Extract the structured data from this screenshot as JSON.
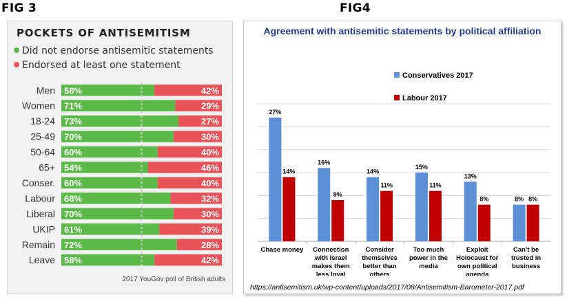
{
  "labels": {
    "fig3": "FIG 3",
    "fig4": "FIG4"
  },
  "chart_data": [
    {
      "type": "bar",
      "stacked": true,
      "orientation": "horizontal",
      "title": "POCKETS OF ANTISEMITISM",
      "categories": [
        "Men",
        "Women",
        "18-24",
        "25-49",
        "50-64",
        "65+",
        "Conser.",
        "Labour",
        "Liberal",
        "UKIP",
        "Remain",
        "Leave"
      ],
      "series": [
        {
          "name": "Did not endorse antisemitic statements",
          "color": "#5bba47",
          "values": [
            58,
            71,
            73,
            70,
            60,
            54,
            60,
            68,
            70,
            61,
            72,
            58
          ]
        },
        {
          "name": "Endorsed at least one statement",
          "color": "#e8535a",
          "values": [
            42,
            29,
            27,
            30,
            40,
            46,
            40,
            32,
            30,
            39,
            28,
            42
          ]
        }
      ],
      "value_suffix": "%",
      "xlim": [
        0,
        100
      ],
      "reference_line": 50,
      "source": "2017 YouGov poll of British adults"
    },
    {
      "type": "bar",
      "title": "Agreement with antisemitic statements by political affiliation",
      "categories": [
        [
          "Chase money"
        ],
        [
          "Connection",
          "with Israel",
          "makes them",
          "less loyal"
        ],
        [
          "Consider",
          "themselves",
          "better than",
          "others"
        ],
        [
          "Too much",
          "power in the",
          "media"
        ],
        [
          "Exploit",
          "Holocaust for",
          "own political",
          "agenda"
        ],
        [
          "Can't be",
          "trusted in",
          "business"
        ]
      ],
      "series": [
        {
          "name": "Conservatives 2017",
          "color": "#5b8fd6",
          "values": [
            27,
            16,
            14,
            15,
            13,
            8
          ]
        },
        {
          "name": "Labour 2017",
          "color": "#c00000",
          "values": [
            14,
            9,
            11,
            11,
            8,
            8
          ]
        }
      ],
      "value_suffix": "%",
      "ylim": [
        0,
        30
      ],
      "gridlines": [
        5,
        10,
        15,
        20,
        25,
        30
      ],
      "legend_position": "top-right",
      "source": "https://antisemitism.uk/wp-content/uploads/2017/08/Antisemitism-Barometer-2017.pdf"
    }
  ]
}
